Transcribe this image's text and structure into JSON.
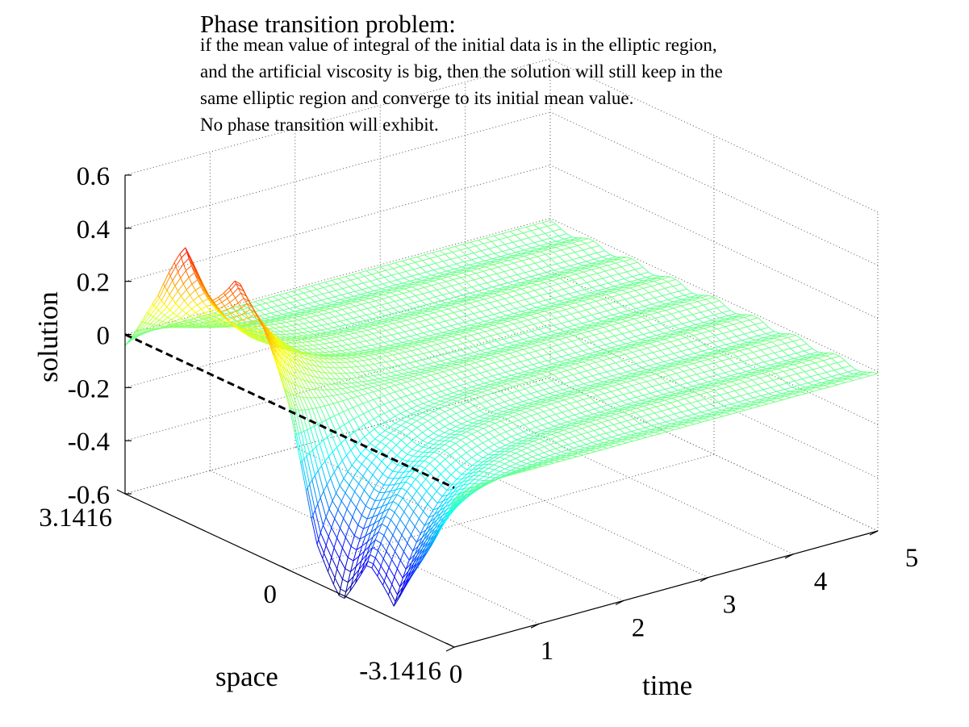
{
  "title": "Phase transition problem:",
  "description_lines": [
    "if the mean value of integral of the initial data is in the elliptic region,",
    "and the artificial viscosity is big, then the solution will still keep in the",
    "same elliptic region and converge to its initial mean value.",
    "No phase transition will exhibit."
  ],
  "chart_data": {
    "type": "surface-mesh",
    "colormap": "jet",
    "xlabel": "time",
    "ylabel": "space",
    "zlabel": "solution",
    "xlim": [
      0,
      5
    ],
    "ylim": [
      -3.1416,
      3.1416
    ],
    "zlim": [
      -0.6,
      0.6
    ],
    "xticks": [
      "0",
      "1",
      "2",
      "3",
      "4",
      "5"
    ],
    "yticks": [
      "3.1416",
      "0",
      "-3.1416"
    ],
    "zticks": [
      "0.6",
      "0.4",
      "0.2",
      "0",
      "-0.2",
      "-0.4",
      "-0.6"
    ],
    "grid": true,
    "initial_profile": {
      "t": 0,
      "space": [
        -3.1416,
        -2.5,
        -2.0,
        -1.5,
        -1.0,
        -0.5,
        0,
        0.5,
        1.0,
        1.5,
        2.0,
        2.5,
        3.1416
      ],
      "solution": [
        0.0,
        -0.34,
        -0.6,
        -0.44,
        -0.58,
        -0.43,
        -0.03,
        0.25,
        0.45,
        0.3,
        0.4,
        0.18,
        0.0
      ]
    },
    "final_mean_value": -0.02,
    "reference_line": {
      "style": "dashed",
      "color": "#000000",
      "t": 0,
      "value": 0
    }
  }
}
